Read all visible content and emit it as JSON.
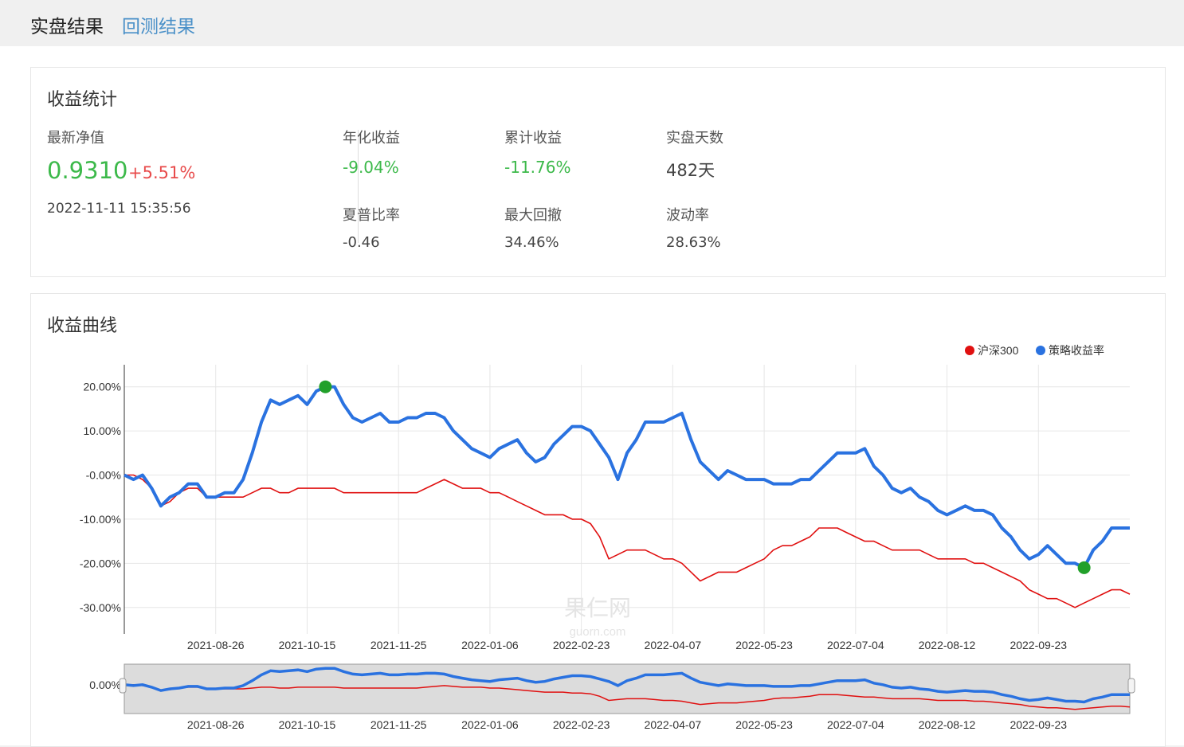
{
  "tabs": [
    {
      "label": "实盘结果",
      "active": true
    },
    {
      "label": "回测结果",
      "active": false
    }
  ],
  "stats": {
    "title": "收益统计",
    "nav_label": "最新净值",
    "nav_value": "0.9310",
    "nav_change": "+5.51%",
    "nav_time": "2022-11-11 15:35:56",
    "items": [
      {
        "label": "年化收益",
        "value": "-9.04%"
      },
      {
        "label": "累计收益",
        "value": "-11.76%"
      },
      {
        "label": "实盘天数",
        "value": "482天"
      },
      {
        "label": "夏普比率",
        "value": "-0.46"
      },
      {
        "label": "最大回撤",
        "value": "34.46%"
      },
      {
        "label": "波动率",
        "value": "28.63%"
      }
    ]
  },
  "curve": {
    "title": "收益曲线",
    "watermark_cn": "果仁网",
    "watermark_en": "guorn.com"
  },
  "colors": {
    "strategy": "#2a72e0",
    "benchmark": "#e01010",
    "marker": "#22a02a",
    "accent": "#4a90c8"
  },
  "chart_data": {
    "type": "line",
    "legend": [
      "沪深300",
      "策略收益率"
    ],
    "legend_position": "top-right",
    "x_ticks": [
      "2021-08-26",
      "2021-10-15",
      "2021-11-25",
      "2022-01-06",
      "2022-02-23",
      "2022-04-07",
      "2022-05-23",
      "2022-07-04",
      "2022-08-12",
      "2022-09-23"
    ],
    "y_ticks": [
      "20.00%",
      "10.00%",
      "-0.00%",
      "-10.00%",
      "-20.00%",
      "-30.00%"
    ],
    "y_tick_values": [
      20,
      10,
      0,
      -10,
      -20,
      -30
    ],
    "ylim": [
      -36,
      25
    ],
    "grid": true,
    "navigator_y_tick": "0.00%",
    "x_index_range": [
      0,
      110
    ],
    "tick_index": [
      10,
      20,
      30,
      40,
      50,
      60,
      70,
      80,
      90,
      100
    ],
    "series": [
      {
        "name": "策略收益率",
        "values": [
          0,
          -1,
          0,
          -3,
          -7,
          -5,
          -4,
          -2,
          -2,
          -5,
          -5,
          -4,
          -4,
          -1,
          5,
          12,
          17,
          16,
          17,
          18,
          16,
          19,
          20,
          20,
          16,
          13,
          12,
          13,
          14,
          12,
          12,
          13,
          13,
          14,
          14,
          13,
          10,
          8,
          6,
          5,
          4,
          6,
          7,
          8,
          5,
          3,
          4,
          7,
          9,
          11,
          11,
          10,
          7,
          4,
          -1,
          5,
          8,
          12,
          12,
          12,
          13,
          14,
          8,
          3,
          1,
          -1,
          1,
          0,
          -1,
          -1,
          -1,
          -2,
          -2,
          -2,
          -1,
          -1,
          1,
          3,
          5,
          5,
          5,
          6,
          2,
          0,
          -3,
          -4,
          -3,
          -5,
          -6,
          -8,
          -9,
          -8,
          -7,
          -8,
          -8,
          -9,
          -12,
          -14,
          -17,
          -19,
          -18,
          -16,
          -18,
          -20,
          -20,
          -21,
          -17,
          -15,
          -12,
          -12,
          -12
        ]
      },
      {
        "name": "沪深300",
        "values": [
          0,
          0,
          -1,
          -3,
          -7,
          -6,
          -4,
          -3,
          -3,
          -5,
          -5,
          -5,
          -5,
          -5,
          -4,
          -3,
          -3,
          -4,
          -4,
          -3,
          -3,
          -3,
          -3,
          -3,
          -4,
          -4,
          -4,
          -4,
          -4,
          -4,
          -4,
          -4,
          -4,
          -3,
          -2,
          -1,
          -2,
          -3,
          -3,
          -3,
          -4,
          -4,
          -5,
          -6,
          -7,
          -8,
          -9,
          -9,
          -9,
          -10,
          -10,
          -11,
          -14,
          -19,
          -18,
          -17,
          -17,
          -17,
          -18,
          -19,
          -19,
          -20,
          -22,
          -24,
          -23,
          -22,
          -22,
          -22,
          -21,
          -20,
          -19,
          -17,
          -16,
          -16,
          -15,
          -14,
          -12,
          -12,
          -12,
          -13,
          -14,
          -15,
          -15,
          -16,
          -17,
          -17,
          -17,
          -17,
          -18,
          -19,
          -19,
          -19,
          -19,
          -20,
          -20,
          -21,
          -22,
          -23,
          -24,
          -26,
          -27,
          -28,
          -28,
          -29,
          -30,
          -29,
          -28,
          -27,
          -26,
          -26,
          -27
        ]
      }
    ],
    "markers": [
      {
        "series": "策略收益率",
        "x_index": 22,
        "value": 20
      },
      {
        "series": "策略收益率",
        "x_index": 105,
        "value": -21
      }
    ]
  }
}
